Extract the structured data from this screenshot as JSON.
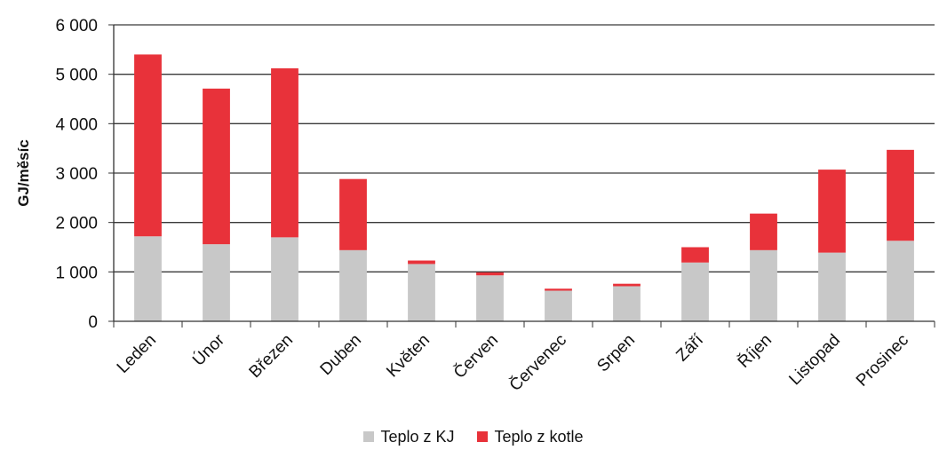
{
  "chart_data": {
    "type": "bar",
    "stacked": true,
    "title": "",
    "xlabel": "",
    "ylabel": "GJ/měsíc",
    "ylim": [
      0,
      6000
    ],
    "yticks": [
      0,
      1000,
      2000,
      3000,
      4000,
      5000,
      6000
    ],
    "ytick_labels": [
      "0",
      "1 000",
      "2 000",
      "3 000",
      "4 000",
      "5 000",
      "6 000"
    ],
    "grid": true,
    "legend_position": "bottom",
    "categories": [
      "Leden",
      "Únor",
      "Březen",
      "Duben",
      "Květen",
      "Červen",
      "Červenec",
      "Srpen",
      "Září",
      "Říjen",
      "Listopad",
      "Prosinec"
    ],
    "series": [
      {
        "name": "Teplo z KJ",
        "color": "#c8c8c8",
        "values": [
          1720,
          1560,
          1700,
          1440,
          1160,
          930,
          620,
          710,
          1190,
          1440,
          1390,
          1630
        ]
      },
      {
        "name": "Teplo z kotle",
        "color": "#e8323a",
        "values": [
          3680,
          3150,
          3420,
          1440,
          70,
          60,
          40,
          50,
          310,
          740,
          1680,
          1840
        ]
      }
    ]
  }
}
